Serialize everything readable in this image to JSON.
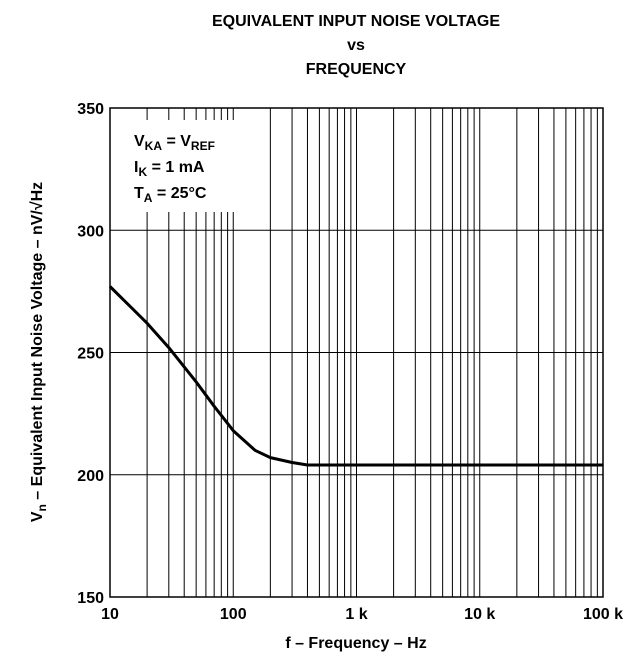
{
  "chart_data": {
    "type": "line",
    "title": [
      "EQUIVALENT INPUT NOISE VOLTAGE",
      "vs",
      "FREQUENCY"
    ],
    "xlabel": "f – Frequency – Hz",
    "ylabel": [
      "V",
      "n",
      " – Equivalent Input Noise Voltage – nV/√Hz"
    ],
    "annotation": [
      [
        "V",
        "KA",
        " = V",
        "REF"
      ],
      [
        "I",
        "K",
        " = 1 mA"
      ],
      [
        "T",
        "A",
        " = 25°C"
      ]
    ],
    "xscale": "log",
    "xlim": [
      10,
      100000
    ],
    "ylim": [
      150,
      350
    ],
    "xticks": [
      10,
      100,
      {
        "value": 1000,
        "label": "1 k"
      },
      {
        "value": 10000,
        "label": "10 k"
      },
      {
        "value": 100000,
        "label": "100 k"
      }
    ],
    "xminorticks": [
      20,
      30,
      40,
      50,
      60,
      70,
      80,
      90,
      200,
      300,
      400,
      500,
      600,
      700,
      800,
      900,
      2000,
      3000,
      4000,
      5000,
      6000,
      7000,
      8000,
      9000,
      20000,
      30000,
      40000,
      50000,
      60000,
      70000,
      80000,
      90000
    ],
    "yticks": [
      150,
      200,
      250,
      300,
      350
    ],
    "grid": true,
    "series": [
      {
        "color": "#000000",
        "x": [
          10,
          20,
          30,
          50,
          70,
          100,
          150,
          200,
          300,
          400,
          1000,
          10000,
          100000
        ],
        "values": [
          277,
          262,
          252,
          238,
          228,
          218,
          210,
          207,
          205,
          204,
          204,
          204,
          204
        ]
      }
    ]
  }
}
